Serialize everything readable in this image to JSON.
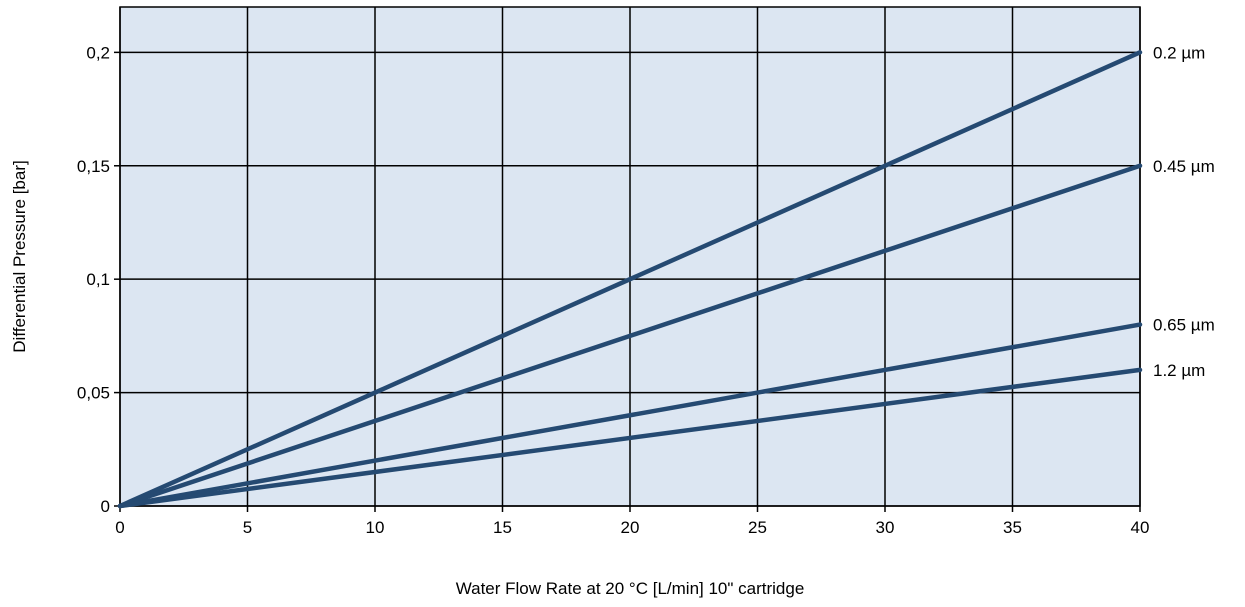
{
  "chart_data": {
    "type": "line",
    "title": "",
    "xlabel": "Water Flow Rate at 20 °C [L/min] 10\" cartridge",
    "ylabel": "Differential Pressure [bar]",
    "xlim": [
      0,
      40
    ],
    "ylim": [
      0,
      0.22
    ],
    "x_ticks": [
      0,
      5,
      10,
      15,
      20,
      25,
      30,
      35,
      40
    ],
    "x_tick_labels": [
      "0",
      "5",
      "10",
      "15",
      "20",
      "25",
      "30",
      "35",
      "40"
    ],
    "y_ticks": [
      0,
      0.05,
      0.1,
      0.15,
      0.2
    ],
    "y_tick_labels": [
      "0",
      "0,05",
      "0,1",
      "0,15",
      "0,2"
    ],
    "grid": true,
    "legend": "inline labels at right end of each line",
    "colors": {
      "plot_background": "#dce6f2",
      "line": "#254a72",
      "grid": "#000000"
    },
    "series": [
      {
        "name": "0.2 µm",
        "x": [
          0,
          40
        ],
        "y": [
          0,
          0.2
        ]
      },
      {
        "name": "0.45 µm",
        "x": [
          0,
          40
        ],
        "y": [
          0,
          0.15
        ]
      },
      {
        "name": "0.65 µm",
        "x": [
          0,
          40
        ],
        "y": [
          0,
          0.08
        ]
      },
      {
        "name": "1.2 µm",
        "x": [
          0,
          40
        ],
        "y": [
          0,
          0.06
        ]
      }
    ]
  }
}
